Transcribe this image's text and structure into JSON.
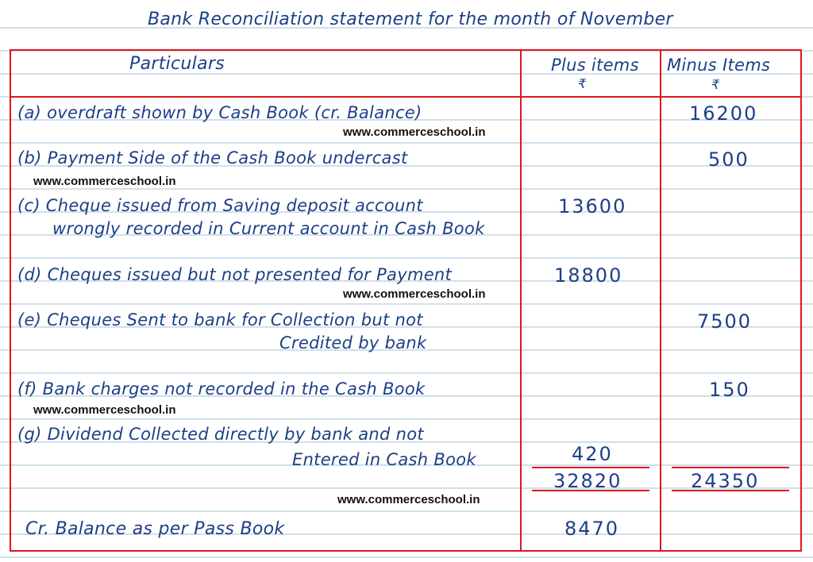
{
  "title": "Bank Reconciliation statement for the month of November",
  "header": {
    "particulars": "Particulars",
    "plus": "Plus items",
    "minus": "Minus Items",
    "currency": "₹"
  },
  "rows": [
    {
      "lines": [
        "(a)  overdraft shown by Cash Book (cr. Balance)"
      ],
      "plus": "",
      "minus": "16200"
    },
    {
      "lines": [
        "(b)  Payment Side of the Cash Book undercast"
      ],
      "plus": "",
      "minus": "500"
    },
    {
      "lines": [
        "(c)  Cheque issued from Saving deposit account",
        "wrongly recorded in Current account in Cash Book"
      ],
      "plus": "13600",
      "minus": ""
    },
    {
      "lines": [
        "(d)  Cheques issued but not presented for Payment"
      ],
      "plus": "18800",
      "minus": ""
    },
    {
      "lines": [
        "(e)  Cheques Sent to bank for Collection but not",
        "Credited by bank"
      ],
      "plus": "",
      "minus": "7500"
    },
    {
      "lines": [
        "(f)  Bank charges not recorded in the Cash Book"
      ],
      "plus": "",
      "minus": "150"
    },
    {
      "lines": [
        "(g)  Dividend Collected directly by bank and not",
        "Entered in Cash Book"
      ],
      "plus": "420",
      "minus": ""
    }
  ],
  "totals": {
    "plus": "32820",
    "minus": "24350"
  },
  "balance": {
    "label": "Cr. Balance as per Pass Book",
    "plus": "8470"
  },
  "watermark": "www.commerceschool.in",
  "colors": {
    "ink": "#1d3f86",
    "table_lines": "#e0161c",
    "ruled_lines": "#cfe0ec"
  }
}
